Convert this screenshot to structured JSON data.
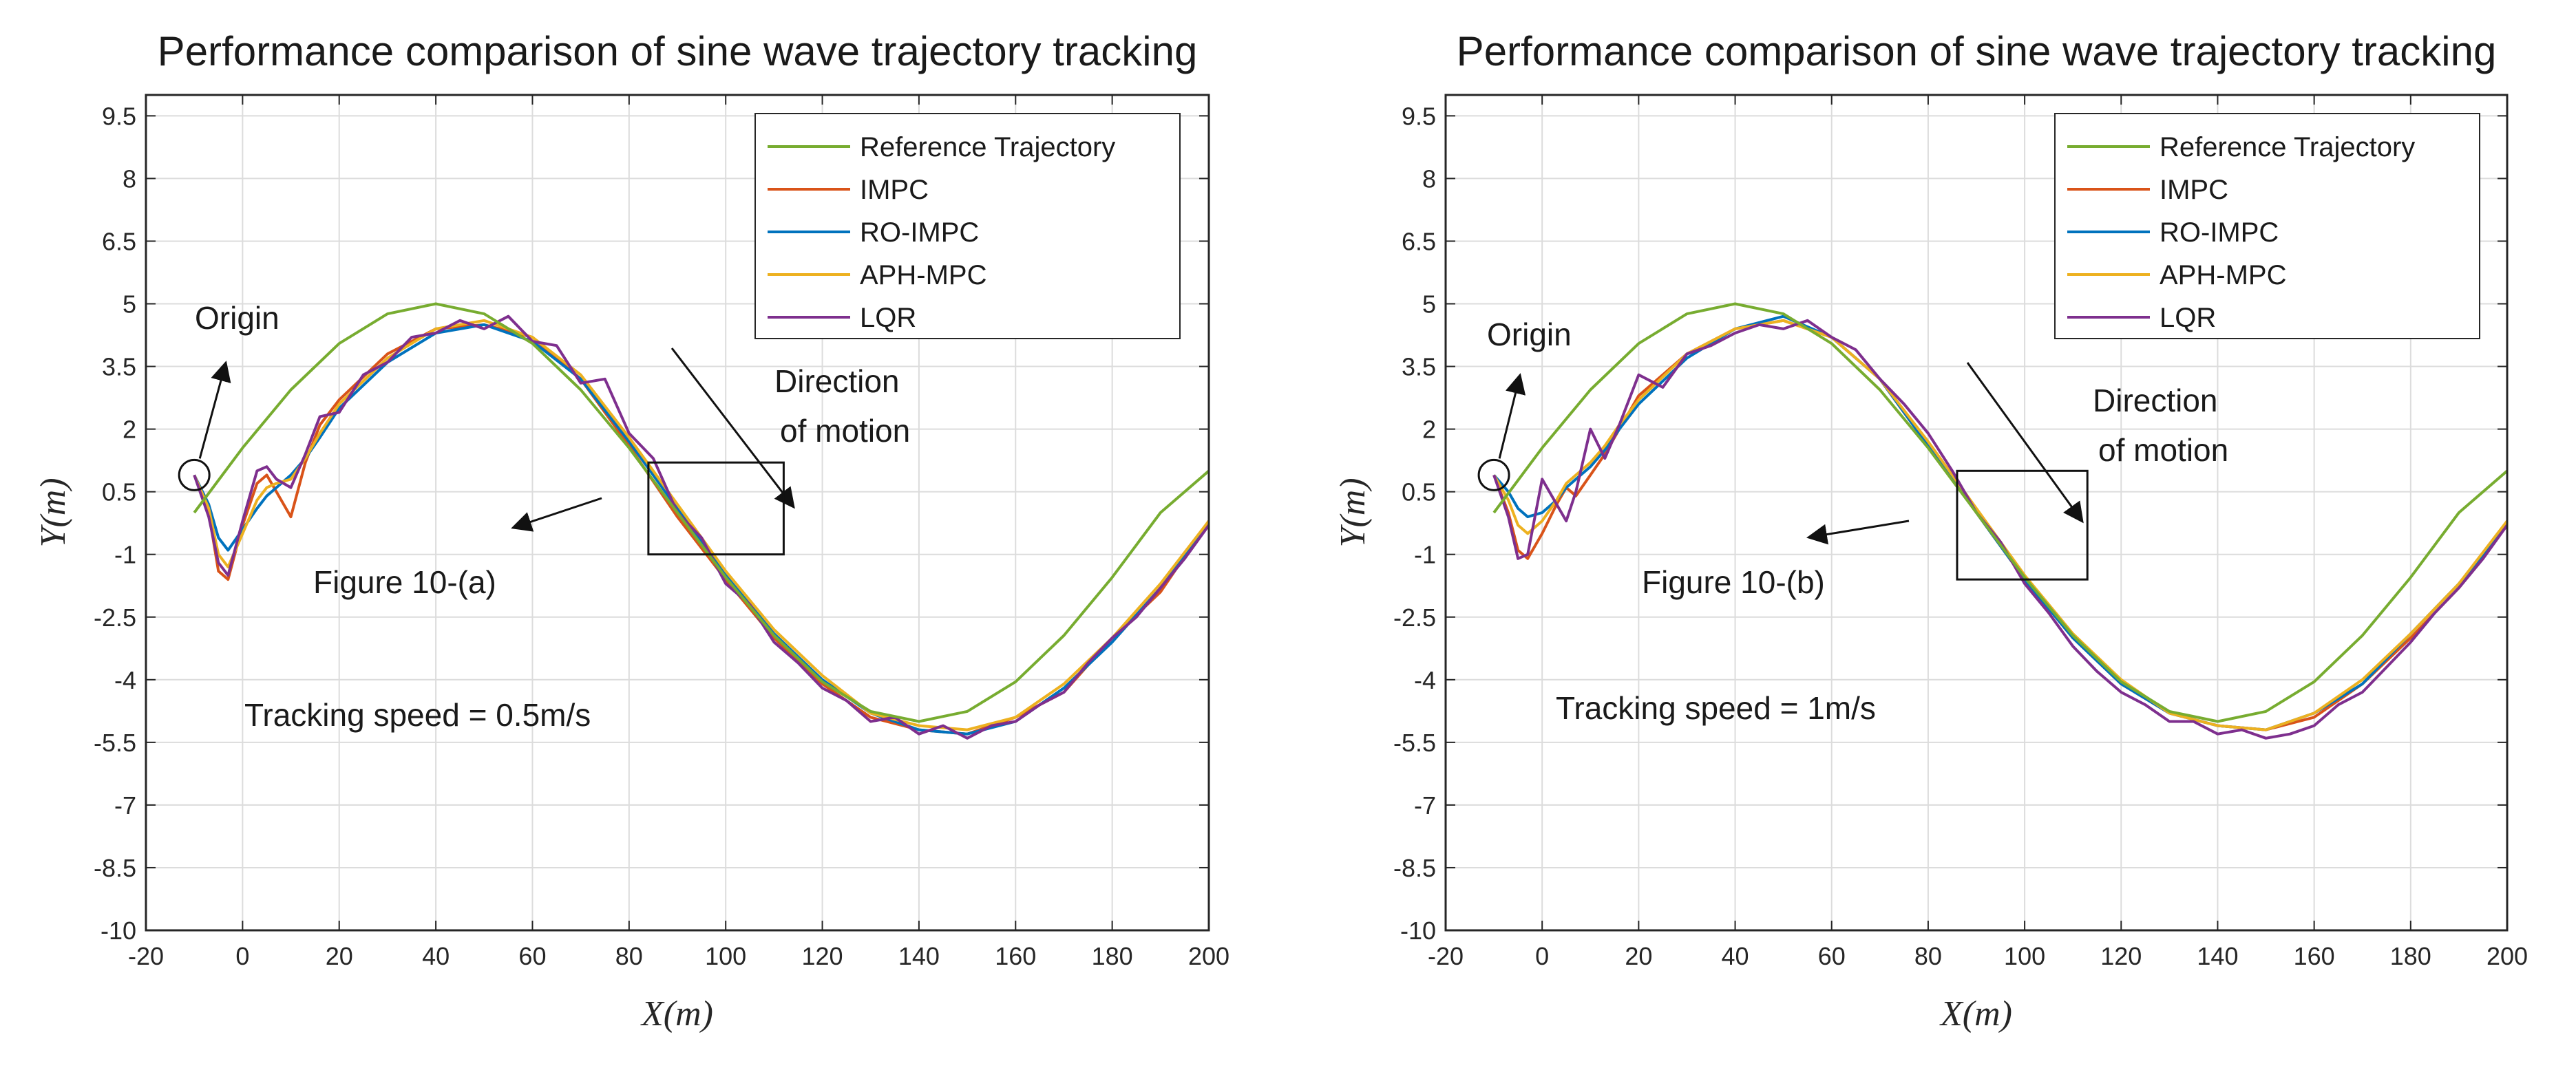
{
  "chart_data": [
    {
      "type": "line",
      "title": "Performance comparison of sine wave trajectory tracking",
      "xlabel": "X(m)",
      "ylabel": "Y(m)",
      "xlim": [
        -20,
        200
      ],
      "ylim": [
        -10,
        10
      ],
      "xticks": [
        -20,
        0,
        20,
        40,
        60,
        80,
        100,
        120,
        140,
        160,
        180,
        200
      ],
      "yticks": [
        -10,
        -8.5,
        -7,
        -5.5,
        -4,
        -2.5,
        -1,
        0.5,
        2,
        3.5,
        5,
        6.5,
        8,
        9.5
      ],
      "grid": true,
      "legend_position": "top-right",
      "series": [
        {
          "name": "Reference Trajectory",
          "color": "#77ac30",
          "x": [
            -10,
            0,
            10,
            20,
            30,
            40,
            50,
            60,
            70,
            80,
            90,
            100,
            110,
            120,
            130,
            140,
            150,
            160,
            170,
            180,
            190,
            200
          ],
          "y": [
            0,
            1.55,
            2.94,
            4.05,
            4.76,
            5.0,
            4.76,
            4.05,
            2.94,
            1.55,
            0,
            -1.55,
            -2.94,
            -4.05,
            -4.76,
            -5.0,
            -4.76,
            -4.05,
            -2.94,
            -1.55,
            0,
            1.0
          ]
        },
        {
          "name": "IMPC",
          "color": "#d95319",
          "x": [
            -10,
            -7,
            -5,
            -3,
            0,
            3,
            5,
            7,
            10,
            13,
            16,
            20,
            30,
            40,
            50,
            60,
            70,
            80,
            90,
            100,
            110,
            120,
            130,
            140,
            150,
            160,
            170,
            180,
            190,
            200
          ],
          "y": [
            0.9,
            0,
            -1.4,
            -1.6,
            -0.3,
            0.7,
            0.9,
            0.5,
            -0.1,
            1.2,
            2.1,
            2.7,
            3.8,
            4.4,
            4.5,
            4.2,
            3.2,
            1.6,
            -0.1,
            -1.6,
            -3.0,
            -4.1,
            -4.9,
            -5.2,
            -5.3,
            -4.9,
            -4.3,
            -3.0,
            -1.9,
            -0.2
          ]
        },
        {
          "name": "RO-IMPC",
          "color": "#0072bd",
          "x": [
            -10,
            -7,
            -5,
            -3,
            0,
            3,
            5,
            7,
            10,
            13,
            16,
            20,
            30,
            40,
            50,
            60,
            70,
            80,
            90,
            100,
            110,
            120,
            130,
            140,
            150,
            160,
            170,
            180,
            190,
            200
          ],
          "y": [
            0.9,
            0.2,
            -0.6,
            -0.9,
            -0.4,
            0.1,
            0.4,
            0.6,
            0.9,
            1.3,
            1.8,
            2.5,
            3.6,
            4.3,
            4.5,
            4.1,
            3.2,
            1.7,
            0.1,
            -1.5,
            -2.9,
            -4.0,
            -4.8,
            -5.2,
            -5.3,
            -5.0,
            -4.2,
            -3.1,
            -1.8,
            -0.3
          ]
        },
        {
          "name": "APH-MPC",
          "color": "#edb120",
          "x": [
            -10,
            -7,
            -5,
            -3,
            0,
            3,
            5,
            7,
            10,
            13,
            16,
            20,
            30,
            40,
            50,
            60,
            70,
            80,
            90,
            100,
            110,
            120,
            130,
            140,
            150,
            160,
            170,
            180,
            190,
            200
          ],
          "y": [
            0.9,
            0.1,
            -1.0,
            -1.3,
            -0.5,
            0.3,
            0.6,
            0.7,
            0.8,
            1.3,
            1.9,
            2.6,
            3.7,
            4.4,
            4.6,
            4.2,
            3.3,
            1.8,
            0.2,
            -1.4,
            -2.8,
            -3.9,
            -4.8,
            -5.1,
            -5.2,
            -4.9,
            -4.1,
            -3.0,
            -1.7,
            -0.2
          ]
        },
        {
          "name": "LQR",
          "color": "#7e2f8e",
          "x": [
            -10,
            -7,
            -5,
            -3,
            0,
            3,
            5,
            7,
            10,
            13,
            16,
            20,
            25,
            30,
            35,
            40,
            45,
            50,
            55,
            60,
            65,
            70,
            75,
            80,
            85,
            90,
            95,
            100,
            105,
            110,
            115,
            120,
            125,
            130,
            135,
            140,
            145,
            150,
            155,
            160,
            165,
            170,
            175,
            180,
            185,
            190,
            195,
            200
          ],
          "y": [
            0.9,
            -0.1,
            -1.2,
            -1.5,
            -0.2,
            1.0,
            1.1,
            0.8,
            0.6,
            1.4,
            2.3,
            2.4,
            3.3,
            3.6,
            4.2,
            4.3,
            4.6,
            4.4,
            4.7,
            4.1,
            4.0,
            3.1,
            3.2,
            1.9,
            1.3,
            0,
            -0.6,
            -1.7,
            -2.2,
            -3.1,
            -3.6,
            -4.2,
            -4.5,
            -5.0,
            -4.9,
            -5.3,
            -5.1,
            -5.4,
            -5.1,
            -5.0,
            -4.6,
            -4.3,
            -3.6,
            -3.0,
            -2.5,
            -1.8,
            -1.1,
            -0.3
          ]
        }
      ],
      "annotations": {
        "origin": "Origin",
        "direction": [
          "Direction",
          "of motion"
        ],
        "figure_ref": "Figure 10-(a)",
        "speed": "Tracking speed = 0.5m/s"
      },
      "origin_point": [
        -10,
        0.9
      ],
      "zoom_box": {
        "x": [
          84,
          112
        ],
        "y": [
          -1,
          1.2
        ]
      }
    },
    {
      "type": "line",
      "title": "Performance comparison of sine wave trajectory tracking",
      "xlabel": "X(m)",
      "ylabel": "Y(m)",
      "xlim": [
        -20,
        200
      ],
      "ylim": [
        -10,
        10
      ],
      "xticks": [
        -20,
        0,
        20,
        40,
        60,
        80,
        100,
        120,
        140,
        160,
        180,
        200
      ],
      "yticks": [
        -10,
        -8.5,
        -7,
        -5.5,
        -4,
        -2.5,
        -1,
        0.5,
        2,
        3.5,
        5,
        6.5,
        8,
        9.5
      ],
      "grid": true,
      "legend_position": "top-right",
      "series": [
        {
          "name": "Reference Trajectory",
          "color": "#77ac30",
          "x": [
            -10,
            0,
            10,
            20,
            30,
            40,
            50,
            60,
            70,
            80,
            90,
            100,
            110,
            120,
            130,
            140,
            150,
            160,
            170,
            180,
            190,
            200
          ],
          "y": [
            0,
            1.55,
            2.94,
            4.05,
            4.76,
            5.0,
            4.76,
            4.05,
            2.94,
            1.55,
            0,
            -1.55,
            -2.94,
            -4.05,
            -4.76,
            -5.0,
            -4.76,
            -4.05,
            -2.94,
            -1.55,
            0,
            1.0
          ]
        },
        {
          "name": "IMPC",
          "color": "#d95319",
          "x": [
            -10,
            -7,
            -5,
            -3,
            0,
            3,
            5,
            7,
            10,
            13,
            16,
            20,
            30,
            40,
            50,
            60,
            70,
            80,
            90,
            100,
            110,
            120,
            130,
            140,
            150,
            160,
            170,
            180,
            190,
            200
          ],
          "y": [
            0.9,
            0,
            -0.9,
            -1.1,
            -0.5,
            0.2,
            0.6,
            0.4,
            0.9,
            1.4,
            2.0,
            2.8,
            3.8,
            4.4,
            4.6,
            4.2,
            3.2,
            1.6,
            0,
            -1.6,
            -3.0,
            -4.1,
            -4.8,
            -5.1,
            -5.2,
            -4.9,
            -4.1,
            -3.0,
            -1.8,
            -0.3
          ]
        },
        {
          "name": "RO-IMPC",
          "color": "#0072bd",
          "x": [
            -10,
            -7,
            -5,
            -3,
            0,
            3,
            5,
            7,
            10,
            13,
            16,
            20,
            30,
            40,
            50,
            60,
            70,
            80,
            90,
            100,
            110,
            120,
            130,
            140,
            150,
            160,
            170,
            180,
            190,
            200
          ],
          "y": [
            0.9,
            0.5,
            0.1,
            -0.1,
            0,
            0.3,
            0.6,
            0.8,
            1.1,
            1.5,
            2.0,
            2.6,
            3.7,
            4.4,
            4.7,
            4.2,
            3.2,
            1.6,
            0,
            -1.6,
            -3.0,
            -4.1,
            -4.8,
            -5.1,
            -5.2,
            -4.8,
            -4.1,
            -2.9,
            -1.7,
            -0.3
          ]
        },
        {
          "name": "APH-MPC",
          "color": "#edb120",
          "x": [
            -10,
            -7,
            -5,
            -3,
            0,
            3,
            5,
            7,
            10,
            13,
            16,
            20,
            30,
            40,
            50,
            60,
            70,
            80,
            90,
            100,
            110,
            120,
            130,
            140,
            150,
            160,
            170,
            180,
            190,
            200
          ],
          "y": [
            0.9,
            0.3,
            -0.3,
            -0.5,
            -0.2,
            0.3,
            0.7,
            0.9,
            1.2,
            1.6,
            2.1,
            2.7,
            3.8,
            4.4,
            4.6,
            4.2,
            3.2,
            1.7,
            0.1,
            -1.5,
            -2.9,
            -4.0,
            -4.8,
            -5.1,
            -5.2,
            -4.8,
            -4.0,
            -2.9,
            -1.7,
            -0.2
          ]
        },
        {
          "name": "LQR",
          "color": "#7e2f8e",
          "x": [
            -10,
            -7,
            -5,
            -3,
            0,
            3,
            5,
            7,
            10,
            13,
            16,
            20,
            25,
            30,
            35,
            40,
            45,
            50,
            55,
            60,
            65,
            70,
            75,
            80,
            85,
            90,
            95,
            100,
            105,
            110,
            115,
            120,
            125,
            130,
            135,
            140,
            145,
            150,
            155,
            160,
            165,
            170,
            175,
            180,
            185,
            190,
            195,
            200
          ],
          "y": [
            0.9,
            -0.1,
            -1.1,
            -1.0,
            0.8,
            0.2,
            -0.2,
            0.5,
            2.0,
            1.3,
            2.1,
            3.3,
            3.0,
            3.8,
            4.0,
            4.3,
            4.5,
            4.4,
            4.6,
            4.2,
            3.9,
            3.2,
            2.6,
            1.9,
            1.0,
            0,
            -0.7,
            -1.7,
            -2.4,
            -3.2,
            -3.8,
            -4.3,
            -4.6,
            -5.0,
            -5.0,
            -5.3,
            -5.2,
            -5.4,
            -5.3,
            -5.1,
            -4.6,
            -4.3,
            -3.7,
            -3.1,
            -2.4,
            -1.8,
            -1.1,
            -0.3
          ]
        }
      ],
      "annotations": {
        "origin": "Origin",
        "direction": [
          "Direction",
          "of motion"
        ],
        "figure_ref": "Figure 10-(b)",
        "speed": "Tracking speed = 1m/s"
      },
      "origin_point": [
        -10,
        0.9
      ],
      "zoom_box": {
        "x": [
          86,
          113
        ],
        "y": [
          -1.6,
          1.0
        ]
      }
    }
  ]
}
